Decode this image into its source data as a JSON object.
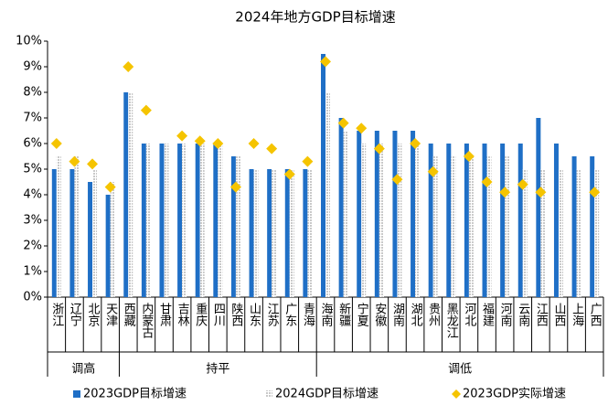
{
  "chart_data": {
    "type": "bar",
    "title": "2024年地方GDP目标增速",
    "groups": [
      {
        "name": "调高",
        "categories": [
          "浙江",
          "辽宁",
          "北京",
          "天津"
        ]
      },
      {
        "name": "持平",
        "categories": [
          "西藏",
          "内蒙古",
          "甘肃",
          "吉林",
          "重庆",
          "四川",
          "陕西",
          "山东",
          "江苏",
          "广东",
          "青海"
        ]
      },
      {
        "name": "调低",
        "categories": [
          "海南",
          "新疆",
          "宁夏",
          "安徽",
          "湖南",
          "湖北",
          "贵州",
          "黑龙江",
          "河北",
          "福建",
          "河南",
          "云南",
          "江西",
          "山西",
          "上海",
          "广西"
        ]
      }
    ],
    "series": [
      {
        "name": "2023GDP目标增速",
        "color": "#1f6fc6",
        "mark": "bar",
        "values": [
          5,
          5,
          4.5,
          4,
          8,
          6,
          6,
          6,
          6,
          6,
          5.5,
          5,
          5,
          5,
          5,
          9.5,
          7,
          6.5,
          6.5,
          6.5,
          6.5,
          6,
          6,
          6,
          6,
          6,
          6,
          7,
          6,
          5.5,
          5.5
        ]
      },
      {
        "name": "2024GDP目标增速",
        "color": "#c9c9c9",
        "mark": "bar",
        "values": [
          5.5,
          5.5,
          5,
          4.5,
          8,
          6,
          6,
          6,
          6,
          6,
          5.5,
          5,
          5,
          5,
          5,
          8,
          6.5,
          6,
          6,
          6,
          6,
          5.5,
          5.5,
          5.5,
          5.5,
          5.5,
          5,
          5,
          5,
          5,
          5
        ]
      },
      {
        "name": "2023GDP实际增速",
        "color": "#f5c400",
        "mark": "diamond",
        "values": [
          6.0,
          5.3,
          5.2,
          4.3,
          9.0,
          7.3,
          null,
          6.3,
          6.1,
          6.0,
          4.3,
          6.0,
          5.8,
          4.8,
          5.3,
          9.2,
          6.8,
          6.6,
          5.8,
          4.6,
          6.0,
          4.9,
          null,
          5.5,
          4.5,
          4.1,
          4.4,
          4.1,
          null,
          null,
          4.1
        ]
      }
    ],
    "ylim": [
      0,
      10
    ],
    "yticks": [
      {
        "value": 0,
        "label": "0%"
      },
      {
        "value": 1,
        "label": "1%"
      },
      {
        "value": 2,
        "label": "2%"
      },
      {
        "value": 3,
        "label": "3%"
      },
      {
        "value": 4,
        "label": "4%"
      },
      {
        "value": 5,
        "label": "5%"
      },
      {
        "value": 6,
        "label": "6%"
      },
      {
        "value": 7,
        "label": "7%"
      },
      {
        "value": 8,
        "label": "8%"
      },
      {
        "value": 9,
        "label": "9%"
      },
      {
        "value": 10,
        "label": "10%"
      }
    ],
    "legend": "bottom"
  }
}
